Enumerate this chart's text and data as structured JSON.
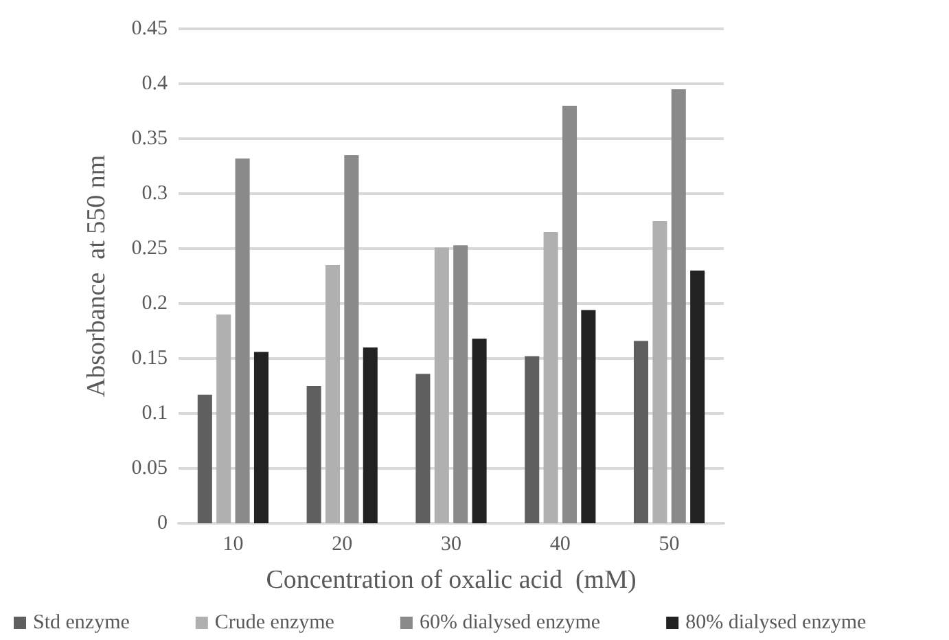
{
  "chart_data": {
    "type": "bar",
    "xlabel": "Concentration of oxalic acid  (mM)",
    "ylabel": "Absorbance  at 550 nm",
    "categories": [
      "10",
      "20",
      "30",
      "40",
      "50"
    ],
    "series": [
      {
        "name": "Std enzyme",
        "color": "#5f5f5f",
        "values": [
          0.117,
          0.125,
          0.136,
          0.152,
          0.166
        ]
      },
      {
        "name": "Crude enzyme",
        "color": "#b0b0b0",
        "values": [
          0.19,
          0.235,
          0.251,
          0.265,
          0.275
        ]
      },
      {
        "name": "60% dialysed enzyme",
        "color": "#8a8a8a",
        "values": [
          0.332,
          0.335,
          0.253,
          0.38,
          0.395
        ]
      },
      {
        "name": "80% dialysed enzyme",
        "color": "#222222",
        "values": [
          0.156,
          0.16,
          0.168,
          0.194,
          0.23
        ]
      }
    ],
    "ylim": [
      0,
      0.45
    ],
    "yticks": [
      0,
      0.05,
      0.1,
      0.15,
      0.2,
      0.25,
      0.3,
      0.35,
      0.4,
      0.45
    ],
    "grid": "y",
    "legend": "bottom"
  }
}
